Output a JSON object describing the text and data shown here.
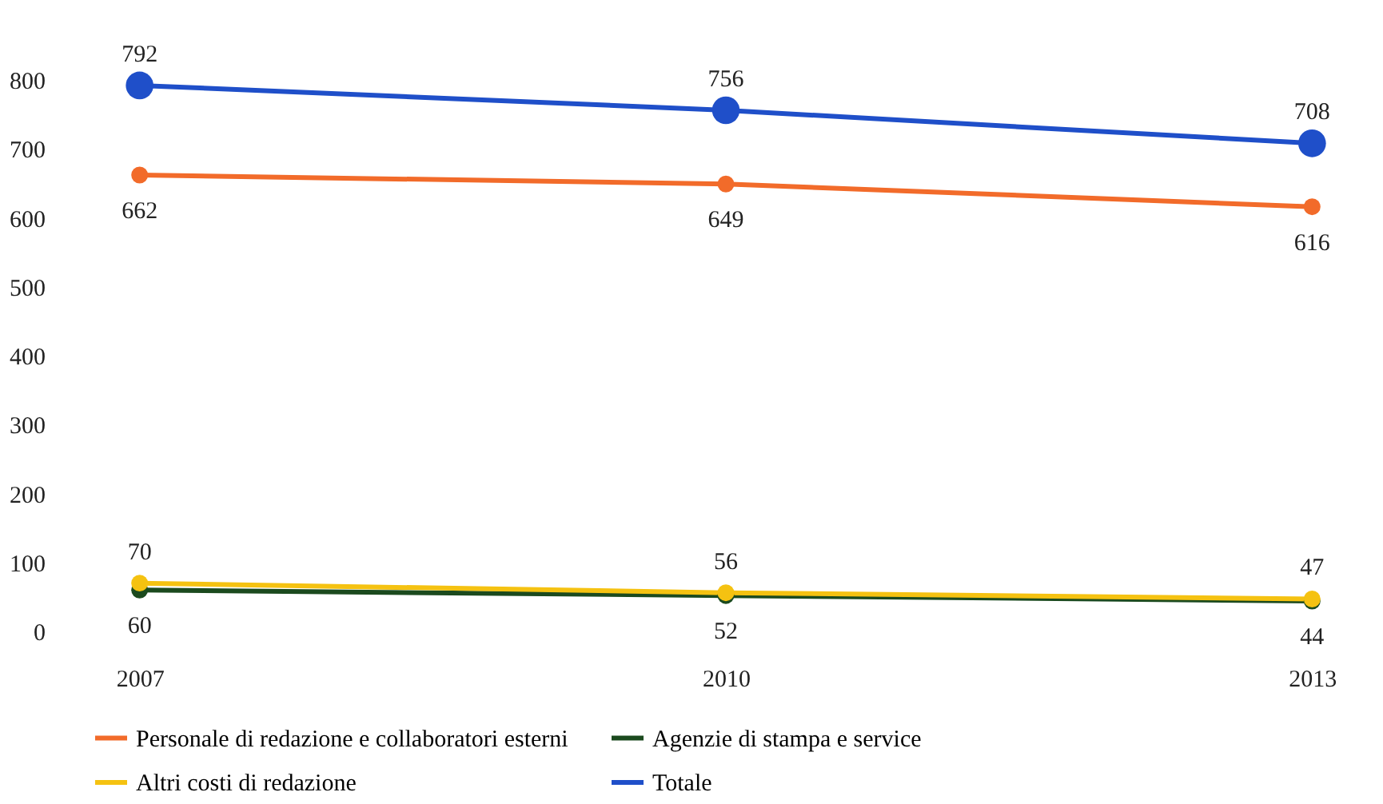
{
  "chart_data": {
    "type": "line",
    "categories": [
      "2007",
      "2010",
      "2013"
    ],
    "series": [
      {
        "name": "Personale di redazione e collaboratori esterni",
        "color": "#f26b2a",
        "values": [
          662,
          649,
          616
        ]
      },
      {
        "name": "Agenzie di stampa e service",
        "color": "#1b4a1e",
        "values": [
          60,
          52,
          44
        ]
      },
      {
        "name": "Altri costi di redazione",
        "color": "#f5c211",
        "values": [
          70,
          56,
          47
        ]
      },
      {
        "name": "Totale",
        "color": "#1f4fc9",
        "values": [
          792,
          756,
          708
        ]
      }
    ],
    "ylim": [
      0,
      800
    ],
    "yticks": [
      0,
      100,
      200,
      300,
      400,
      500,
      600,
      700,
      800
    ],
    "grid": false,
    "legend": "bottom",
    "marker": "circle",
    "line_style": "solid",
    "data_labels": true
  }
}
